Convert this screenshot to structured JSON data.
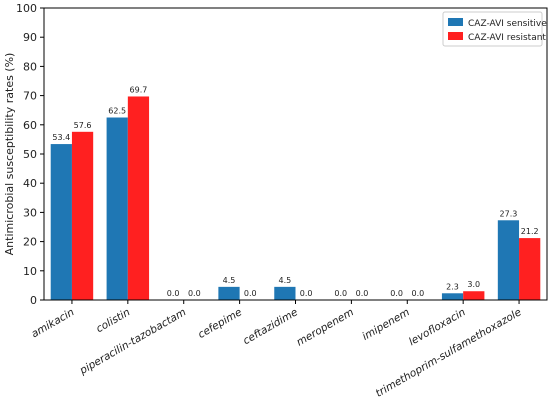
{
  "chart_data": {
    "type": "bar",
    "title": "",
    "xlabel": "",
    "ylabel": "Antimicrobial susceptibility rates (%)",
    "ylim": [
      0,
      100
    ],
    "yticks": [
      0,
      10,
      20,
      30,
      40,
      50,
      60,
      70,
      80,
      90,
      100
    ],
    "grid": false,
    "legend_position": "top-right",
    "categories": [
      "amikacin",
      "colistin",
      "piperacilin-tazobactam",
      "cefepime",
      "ceftazidime",
      "meropenem",
      "imipenem",
      "levofloxacin",
      "trimethoprim-sulfamethoxazole"
    ],
    "series": [
      {
        "name": "CAZ-AVI sensitive",
        "color": "#1f77b4",
        "values": [
          53.4,
          62.5,
          0.0,
          4.5,
          4.5,
          0.0,
          0.0,
          2.3,
          27.3
        ]
      },
      {
        "name": "CAZ-AVI resistant",
        "color": "#ff2020",
        "values": [
          57.6,
          69.7,
          0.0,
          0.0,
          0.0,
          0.0,
          0.0,
          3.0,
          21.2
        ]
      }
    ]
  }
}
